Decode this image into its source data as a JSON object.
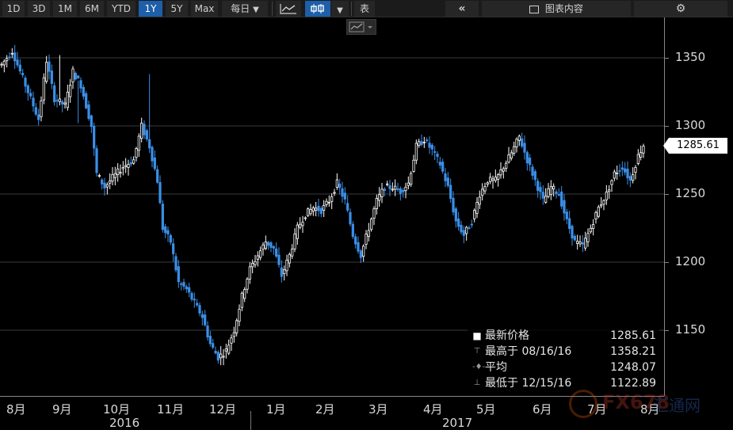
{
  "toolbar": {
    "ranges": [
      "1D",
      "3D",
      "1M",
      "6M",
      "YTD",
      "1Y",
      "5Y",
      "Max"
    ],
    "active_range": "1Y",
    "interval_label": "每日",
    "table_label": "表",
    "chart_content_label": "图表内容"
  },
  "price_tag": "1285.61",
  "stats": {
    "latest_label": "最新价格",
    "latest_value": "1285.61",
    "high_label": "最高于 08/16/16",
    "high_value": "1358.21",
    "avg_label": "平均",
    "avg_value": "1248.07",
    "low_label": "最低于 12/15/16",
    "low_value": "1122.89"
  },
  "xaxis": {
    "months": [
      "8月",
      "9月",
      "10月",
      "11月",
      "12月",
      "1月",
      "2月",
      "3月",
      "4月",
      "5月",
      "6月",
      "7月",
      "8月"
    ],
    "years": [
      "2016",
      "2017"
    ]
  },
  "yaxis": {
    "ticks": [
      "1350",
      "1300",
      "1250",
      "1200",
      "1150"
    ]
  },
  "watermark": {
    "text": "FX678",
    "cn": "汇通网"
  },
  "colors": {
    "up": "#ffffff",
    "down": "#3a8fe8",
    "background": "#000000",
    "active": "#1d5fa8"
  },
  "chart_data": {
    "type": "candlestick",
    "ylim": [
      1110,
      1380
    ],
    "anchors": [
      [
        0,
        1345
      ],
      [
        4,
        1355
      ],
      [
        8,
        1335
      ],
      [
        12,
        1315
      ],
      [
        14,
        1305
      ],
      [
        17,
        1348
      ],
      [
        20,
        1320
      ],
      [
        24,
        1315
      ],
      [
        27,
        1340
      ],
      [
        30,
        1330
      ],
      [
        34,
        1300
      ],
      [
        36,
        1265
      ],
      [
        39,
        1255
      ],
      [
        42,
        1262
      ],
      [
        46,
        1270
      ],
      [
        50,
        1275
      ],
      [
        53,
        1300
      ],
      [
        56,
        1285
      ],
      [
        59,
        1260
      ],
      [
        61,
        1225
      ],
      [
        64,
        1215
      ],
      [
        67,
        1185
      ],
      [
        70,
        1180
      ],
      [
        73,
        1170
      ],
      [
        76,
        1160
      ],
      [
        79,
        1140
      ],
      [
        82,
        1130
      ],
      [
        85,
        1135
      ],
      [
        88,
        1150
      ],
      [
        91,
        1175
      ],
      [
        94,
        1195
      ],
      [
        97,
        1205
      ],
      [
        100,
        1215
      ],
      [
        103,
        1210
      ],
      [
        106,
        1190
      ],
      [
        109,
        1205
      ],
      [
        112,
        1225
      ],
      [
        115,
        1235
      ],
      [
        118,
        1240
      ],
      [
        121,
        1238
      ],
      [
        124,
        1245
      ],
      [
        127,
        1258
      ],
      [
        130,
        1245
      ],
      [
        133,
        1220
      ],
      [
        136,
        1205
      ],
      [
        139,
        1225
      ],
      [
        142,
        1245
      ],
      [
        145,
        1255
      ],
      [
        148,
        1255
      ],
      [
        151,
        1252
      ],
      [
        154,
        1258
      ],
      [
        157,
        1285
      ],
      [
        160,
        1290
      ],
      [
        163,
        1282
      ],
      [
        166,
        1272
      ],
      [
        169,
        1255
      ],
      [
        172,
        1230
      ],
      [
        175,
        1220
      ],
      [
        178,
        1230
      ],
      [
        181,
        1250
      ],
      [
        184,
        1260
      ],
      [
        187,
        1260
      ],
      [
        190,
        1270
      ],
      [
        193,
        1280
      ],
      [
        196,
        1292
      ],
      [
        199,
        1275
      ],
      [
        202,
        1260
      ],
      [
        205,
        1245
      ],
      [
        208,
        1255
      ],
      [
        211,
        1250
      ],
      [
        214,
        1230
      ],
      [
        217,
        1215
      ],
      [
        220,
        1212
      ],
      [
        223,
        1225
      ],
      [
        226,
        1240
      ],
      [
        229,
        1250
      ],
      [
        232,
        1265
      ],
      [
        235,
        1270
      ],
      [
        238,
        1260
      ],
      [
        241,
        1278
      ],
      [
        243,
        1286
      ]
    ],
    "spikes": [
      [
        56,
        1338
      ],
      [
        29,
        1302
      ],
      [
        22,
        1352
      ]
    ],
    "high_point": {
      "date": "08/16/16",
      "value": 1358.21
    },
    "low_point": {
      "date": "12/15/16",
      "value": 1122.89
    },
    "average": 1248.07,
    "last": 1285.61
  }
}
